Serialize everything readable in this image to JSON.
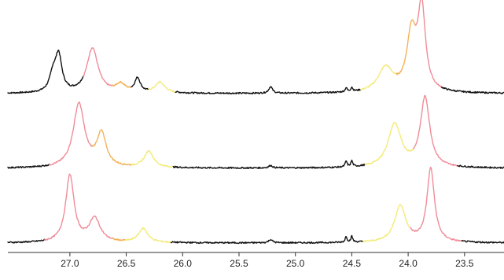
{
  "chart_data": {
    "type": "line",
    "title": "",
    "xlabel": "",
    "ylabel": "",
    "x_reversed": true,
    "xlim": [
      27.55,
      23.15
    ],
    "x_ticks": [
      "27.0",
      "26.5",
      "26.0",
      "25.5",
      "25.0",
      "24.5",
      "24.0",
      "23.5"
    ],
    "y_axis_shown": false,
    "grid": false,
    "legend": "none",
    "colors": {
      "base": "#111111",
      "pink": "#f08c98",
      "orange": "#f4b256",
      "yellow": "#f3eb7a",
      "axis": "#333333"
    },
    "series": [
      {
        "peaks": [
          {
            "x": 27.1,
            "h": 0.44,
            "w": 0.035,
            "color": "base"
          },
          {
            "x": 27.15,
            "h": 0.2,
            "w": 0.035,
            "color": "base"
          },
          {
            "x": 26.8,
            "h": 0.55,
            "w": 0.06,
            "color": "pink"
          },
          {
            "x": 26.55,
            "h": 0.1,
            "w": 0.05,
            "color": "orange"
          },
          {
            "x": 26.4,
            "h": 0.17,
            "w": 0.03,
            "color": "base"
          },
          {
            "x": 26.2,
            "h": 0.13,
            "w": 0.05,
            "color": "yellow"
          },
          {
            "x": 25.22,
            "h": 0.08,
            "w": 0.02,
            "color": "base"
          },
          {
            "x": 24.55,
            "h": 0.05,
            "w": 0.01,
            "color": "base"
          },
          {
            "x": 24.5,
            "h": 0.05,
            "w": 0.01,
            "color": "base"
          },
          {
            "x": 24.2,
            "h": 0.3,
            "w": 0.08,
            "color": "yellow"
          },
          {
            "x": 23.97,
            "h": 0.7,
            "w": 0.05,
            "color": "orange"
          },
          {
            "x": 23.88,
            "h": 1.0,
            "w": 0.04,
            "color": "pink"
          }
        ],
        "segments": [
          {
            "from": 27.55,
            "to": 26.88,
            "color": "base"
          },
          {
            "from": 26.88,
            "to": 26.62,
            "color": "pink"
          },
          {
            "from": 26.62,
            "to": 26.45,
            "color": "orange"
          },
          {
            "from": 26.45,
            "to": 26.3,
            "color": "base"
          },
          {
            "from": 26.3,
            "to": 26.06,
            "color": "yellow"
          },
          {
            "from": 26.06,
            "to": 24.42,
            "color": "base"
          },
          {
            "from": 24.42,
            "to": 24.1,
            "color": "yellow"
          },
          {
            "from": 24.1,
            "to": 23.93,
            "color": "orange"
          },
          {
            "from": 23.93,
            "to": 23.7,
            "color": "pink"
          },
          {
            "from": 23.7,
            "to": 23.15,
            "color": "base"
          }
        ]
      },
      {
        "peaks": [
          {
            "x": 26.92,
            "h": 0.78,
            "w": 0.06,
            "color": "pink"
          },
          {
            "x": 26.72,
            "h": 0.4,
            "w": 0.05,
            "color": "orange"
          },
          {
            "x": 26.3,
            "h": 0.2,
            "w": 0.05,
            "color": "yellow"
          },
          {
            "x": 25.22,
            "h": 0.03,
            "w": 0.02,
            "color": "base"
          },
          {
            "x": 24.55,
            "h": 0.07,
            "w": 0.01,
            "color": "base"
          },
          {
            "x": 24.5,
            "h": 0.07,
            "w": 0.01,
            "color": "base"
          },
          {
            "x": 24.12,
            "h": 0.53,
            "w": 0.07,
            "color": "yellow"
          },
          {
            "x": 23.85,
            "h": 0.85,
            "w": 0.05,
            "color": "pink"
          }
        ],
        "segments": [
          {
            "from": 27.55,
            "to": 27.18,
            "color": "base"
          },
          {
            "from": 27.18,
            "to": 26.8,
            "color": "pink"
          },
          {
            "from": 26.8,
            "to": 26.45,
            "color": "orange"
          },
          {
            "from": 26.45,
            "to": 26.08,
            "color": "yellow"
          },
          {
            "from": 26.08,
            "to": 24.38,
            "color": "base"
          },
          {
            "from": 24.38,
            "to": 23.95,
            "color": "yellow"
          },
          {
            "from": 23.95,
            "to": 23.56,
            "color": "pink"
          },
          {
            "from": 23.56,
            "to": 23.15,
            "color": "base"
          }
        ]
      },
      {
        "peaks": [
          {
            "x": 27.0,
            "h": 0.82,
            "w": 0.045,
            "color": "pink"
          },
          {
            "x": 26.78,
            "h": 0.29,
            "w": 0.06,
            "color": "pink"
          },
          {
            "x": 26.35,
            "h": 0.17,
            "w": 0.05,
            "color": "yellow"
          },
          {
            "x": 25.22,
            "h": 0.04,
            "w": 0.02,
            "color": "base"
          },
          {
            "x": 24.55,
            "h": 0.07,
            "w": 0.01,
            "color": "base"
          },
          {
            "x": 24.5,
            "h": 0.07,
            "w": 0.01,
            "color": "base"
          },
          {
            "x": 24.07,
            "h": 0.45,
            "w": 0.06,
            "color": "yellow"
          },
          {
            "x": 23.8,
            "h": 0.9,
            "w": 0.04,
            "color": "pink"
          }
        ],
        "segments": [
          {
            "from": 27.55,
            "to": 27.22,
            "color": "base"
          },
          {
            "from": 27.22,
            "to": 26.62,
            "color": "pink"
          },
          {
            "from": 26.62,
            "to": 26.5,
            "color": "orange"
          },
          {
            "from": 26.5,
            "to": 26.1,
            "color": "yellow"
          },
          {
            "from": 26.1,
            "to": 24.4,
            "color": "base"
          },
          {
            "from": 24.4,
            "to": 23.98,
            "color": "yellow"
          },
          {
            "from": 23.98,
            "to": 23.52,
            "color": "pink"
          },
          {
            "from": 23.52,
            "to": 23.15,
            "color": "base"
          }
        ]
      }
    ]
  }
}
